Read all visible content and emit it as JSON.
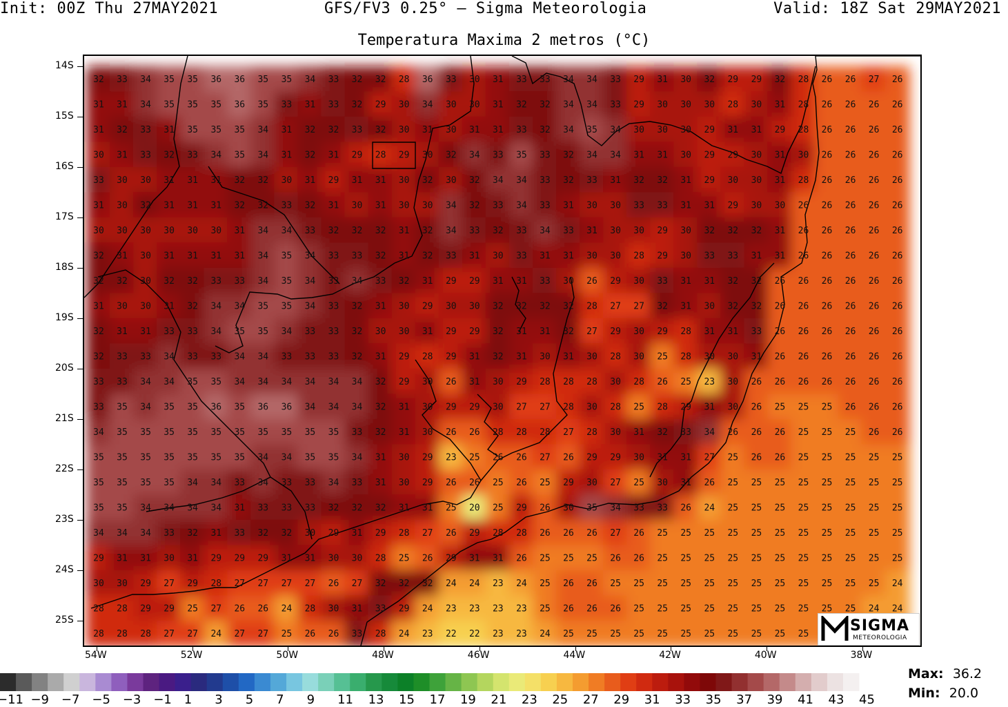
{
  "header": {
    "init": "Init: 00Z Thu 27MAY2021",
    "model": "GFS/FV3 0.25° — Sigma Meteorologia",
    "valid": "Valid: 18Z Sat 29MAY2021"
  },
  "map": {
    "title": "Temperatura Maxima 2 metros (°C)",
    "lat_labels": [
      "14S",
      "15S",
      "16S",
      "17S",
      "18S",
      "19S",
      "20S",
      "21S",
      "22S",
      "23S",
      "24S",
      "25S"
    ],
    "lon_labels": [
      "54W",
      "52W",
      "50W",
      "48W",
      "46W",
      "44W",
      "42W",
      "40W",
      "38W"
    ],
    "values": [
      [
        32,
        33,
        34,
        35,
        35,
        36,
        36,
        35,
        35,
        34,
        33,
        32,
        32,
        28,
        36,
        33,
        30,
        31,
        33,
        33,
        34,
        34,
        33,
        29,
        31,
        30,
        32,
        29,
        29,
        32,
        28,
        26,
        26,
        27,
        26
      ],
      [
        31,
        31,
        34,
        35,
        35,
        35,
        36,
        35,
        33,
        31,
        33,
        32,
        29,
        30,
        34,
        30,
        30,
        31,
        32,
        32,
        34,
        34,
        33,
        29,
        30,
        30,
        30,
        28,
        30,
        31,
        28,
        26,
        26,
        26,
        26
      ],
      [
        31,
        32,
        33,
        31,
        35,
        35,
        35,
        34,
        31,
        32,
        32,
        33,
        32,
        30,
        31,
        30,
        31,
        31,
        33,
        32,
        34,
        35,
        34,
        30,
        30,
        30,
        29,
        31,
        31,
        29,
        28,
        26,
        26,
        26,
        26
      ],
      [
        30,
        31,
        33,
        32,
        33,
        34,
        35,
        34,
        31,
        32,
        31,
        29,
        28,
        29,
        30,
        32,
        34,
        33,
        35,
        33,
        32,
        34,
        34,
        31,
        31,
        30,
        29,
        29,
        30,
        31,
        30,
        26,
        26,
        26,
        26
      ],
      [
        33,
        30,
        30,
        31,
        31,
        31,
        32,
        32,
        30,
        31,
        29,
        31,
        31,
        30,
        32,
        30,
        32,
        34,
        34,
        33,
        32,
        33,
        31,
        32,
        32,
        31,
        29,
        30,
        30,
        31,
        28,
        26,
        26,
        26,
        26
      ],
      [
        31,
        30,
        32,
        31,
        31,
        31,
        32,
        32,
        33,
        32,
        31,
        30,
        31,
        30,
        30,
        34,
        32,
        33,
        34,
        33,
        31,
        30,
        30,
        33,
        33,
        31,
        31,
        29,
        30,
        30,
        26,
        26,
        26,
        26,
        26
      ],
      [
        30,
        30,
        30,
        30,
        30,
        30,
        31,
        34,
        34,
        33,
        32,
        32,
        32,
        31,
        32,
        34,
        33,
        32,
        33,
        34,
        33,
        31,
        30,
        30,
        29,
        30,
        32,
        32,
        32,
        31,
        26,
        26,
        26,
        26,
        26
      ],
      [
        32,
        31,
        30,
        31,
        31,
        31,
        31,
        34,
        35,
        34,
        33,
        33,
        32,
        31,
        32,
        33,
        31,
        30,
        33,
        31,
        31,
        30,
        30,
        28,
        29,
        30,
        33,
        33,
        31,
        31,
        26,
        26,
        26,
        26,
        26
      ],
      [
        32,
        32,
        30,
        32,
        32,
        33,
        33,
        34,
        35,
        34,
        33,
        34,
        33,
        32,
        31,
        29,
        29,
        31,
        31,
        33,
        30,
        26,
        29,
        30,
        33,
        31,
        31,
        32,
        32,
        26,
        26,
        26,
        26,
        26,
        26
      ],
      [
        31,
        30,
        30,
        31,
        32,
        34,
        34,
        35,
        35,
        34,
        33,
        32,
        31,
        30,
        29,
        30,
        30,
        32,
        32,
        32,
        32,
        28,
        27,
        27,
        32,
        31,
        30,
        32,
        32,
        26,
        26,
        26,
        26,
        26,
        26
      ],
      [
        32,
        31,
        31,
        33,
        33,
        34,
        35,
        35,
        34,
        33,
        33,
        32,
        30,
        30,
        31,
        29,
        29,
        32,
        31,
        31,
        32,
        27,
        29,
        30,
        29,
        28,
        31,
        31,
        33,
        26,
        26,
        26,
        26,
        26,
        26
      ],
      [
        32,
        33,
        33,
        34,
        33,
        33,
        34,
        34,
        33,
        33,
        33,
        32,
        31,
        29,
        28,
        29,
        31,
        32,
        31,
        30,
        31,
        30,
        28,
        30,
        25,
        28,
        30,
        30,
        31,
        26,
        26,
        26,
        26,
        26,
        26
      ],
      [
        33,
        33,
        34,
        34,
        35,
        35,
        34,
        34,
        34,
        34,
        34,
        34,
        32,
        29,
        30,
        26,
        31,
        30,
        29,
        28,
        28,
        28,
        30,
        28,
        26,
        25,
        23,
        30,
        26,
        26,
        26,
        26,
        26,
        26,
        26
      ],
      [
        33,
        35,
        34,
        35,
        35,
        36,
        35,
        36,
        36,
        34,
        34,
        34,
        32,
        31,
        30,
        29,
        29,
        30,
        27,
        27,
        28,
        30,
        28,
        25,
        28,
        29,
        31,
        30,
        26,
        25,
        25,
        25,
        26,
        26,
        26
      ],
      [
        34,
        35,
        35,
        35,
        35,
        35,
        35,
        35,
        35,
        35,
        35,
        33,
        32,
        31,
        30,
        26,
        26,
        28,
        28,
        28,
        27,
        28,
        30,
        31,
        32,
        33,
        34,
        26,
        26,
        26,
        25,
        25,
        25,
        26,
        26
      ],
      [
        35,
        35,
        35,
        35,
        35,
        35,
        35,
        34,
        34,
        35,
        35,
        34,
        31,
        30,
        29,
        23,
        25,
        26,
        26,
        27,
        26,
        29,
        29,
        30,
        31,
        31,
        27,
        25,
        26,
        26,
        25,
        25,
        25,
        25,
        25
      ],
      [
        35,
        35,
        35,
        35,
        34,
        34,
        33,
        34,
        33,
        33,
        34,
        33,
        31,
        30,
        29,
        26,
        26,
        25,
        26,
        25,
        29,
        30,
        27,
        25,
        30,
        31,
        26,
        25,
        25,
        25,
        25,
        25,
        25,
        25,
        25
      ],
      [
        35,
        35,
        34,
        34,
        34,
        34,
        31,
        33,
        33,
        33,
        32,
        32,
        32,
        31,
        31,
        25,
        20,
        25,
        29,
        26,
        30,
        35,
        34,
        33,
        33,
        26,
        24,
        25,
        25,
        25,
        25,
        25,
        25,
        25,
        25
      ],
      [
        34,
        34,
        34,
        33,
        32,
        31,
        33,
        32,
        32,
        30,
        29,
        31,
        29,
        28,
        27,
        26,
        29,
        28,
        28,
        26,
        26,
        26,
        27,
        26,
        25,
        25,
        25,
        25,
        25,
        25,
        25,
        25,
        25,
        25,
        25
      ],
      [
        29,
        31,
        31,
        30,
        31,
        29,
        29,
        29,
        31,
        31,
        30,
        30,
        28,
        25,
        26,
        29,
        31,
        31,
        26,
        25,
        25,
        25,
        26,
        26,
        25,
        25,
        25,
        25,
        25,
        25,
        25,
        25,
        25,
        25,
        25
      ],
      [
        30,
        30,
        29,
        27,
        29,
        28,
        27,
        27,
        27,
        27,
        26,
        27,
        32,
        32,
        32,
        24,
        24,
        23,
        24,
        25,
        26,
        26,
        25,
        25,
        25,
        25,
        25,
        25,
        25,
        25,
        25,
        25,
        25,
        25,
        24
      ],
      [
        28,
        28,
        29,
        29,
        25,
        27,
        26,
        26,
        24,
        28,
        30,
        31,
        33,
        29,
        24,
        23,
        23,
        23,
        23,
        25,
        26,
        26,
        26,
        25,
        25,
        25,
        25,
        25,
        25,
        25,
        25,
        25,
        25,
        24,
        24
      ],
      [
        28,
        28,
        28,
        27,
        27,
        24,
        27,
        27,
        25,
        26,
        26,
        33,
        28,
        24,
        23,
        22,
        22,
        23,
        23,
        24,
        25,
        25,
        25,
        25,
        25,
        25,
        25,
        25,
        25,
        25,
        25,
        25,
        25,
        25,
        25
      ]
    ],
    "colorbar": {
      "labels": [
        "−11",
        "−9",
        "−7",
        "−5",
        "−3",
        "−1",
        "1",
        "3",
        "5",
        "7",
        "9",
        "11",
        "13",
        "15",
        "17",
        "19",
        "21",
        "23",
        "25",
        "27",
        "29",
        "31",
        "33",
        "35",
        "37",
        "39",
        "41",
        "43",
        "45"
      ],
      "colors": [
        "#2c2c2c",
        "#5a5a5a",
        "#828282",
        "#aaaaaa",
        "#d0d0d0",
        "#c9b6dd",
        "#a98bd2",
        "#8f5fbd",
        "#7a3a9c",
        "#5e237f",
        "#4a1a82",
        "#3a1f8c",
        "#2a2a7e",
        "#223a8e",
        "#1e4fa8",
        "#2268c4",
        "#3a8ad2",
        "#54a8d8",
        "#78c6e0",
        "#98dcdc",
        "#7ad0b8",
        "#56c094",
        "#3aae6e",
        "#26984c",
        "#168a3a",
        "#0c8028",
        "#1e8e28",
        "#3ea23a",
        "#66b446",
        "#8ec652",
        "#b4d65e",
        "#d4e46e",
        "#eaea78",
        "#f4e068",
        "#f7d050",
        "#f7b840",
        "#f49c30",
        "#f07c24",
        "#e85c1c",
        "#e03e14",
        "#d02a10",
        "#bc1c0e",
        "#a8120c",
        "#920a0a",
        "#7e0808",
        "#801818",
        "#923030",
        "#a44a4a",
        "#b46868",
        "#c48a8a",
        "#d4aeae",
        "#e2cccc",
        "#ece2e2",
        "#f4f0f0"
      ]
    },
    "stats": {
      "max_label": "Max:",
      "max_value": "36.2",
      "min_label": "Min:",
      "min_value": "20.0"
    },
    "logo": {
      "line1": "SIGMA",
      "line2": "METEOROLOGIA"
    }
  }
}
